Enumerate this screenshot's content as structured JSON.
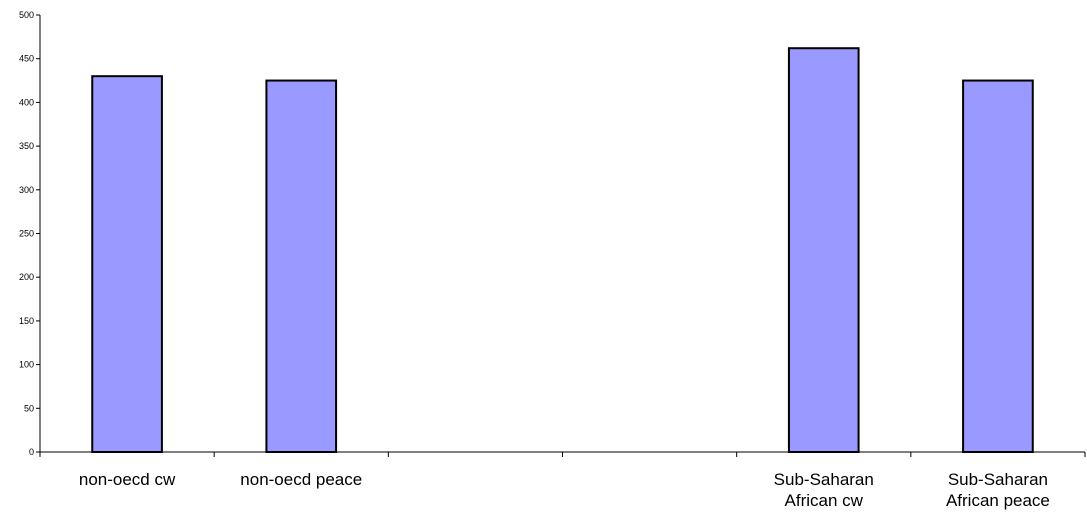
{
  "chart_data": {
    "type": "bar",
    "title": "",
    "xlabel": "",
    "ylabel": "",
    "categories": [
      [
        "non-oecd cw"
      ],
      [
        "non-oecd peace"
      ],
      [],
      [],
      [
        "Sub-Saharan",
        "African cw"
      ],
      [
        "Sub-Saharan",
        "African peace"
      ]
    ],
    "values": [
      430,
      425,
      null,
      null,
      462,
      425
    ],
    "ylim": [
      0,
      500
    ],
    "yticks": [
      "0",
      "50",
      "100",
      "150",
      "200",
      "250",
      "300",
      "350",
      "400",
      "450",
      "500"
    ],
    "grid": false,
    "legend": "none",
    "bar_color": "#9999FF",
    "bar_edge_color": "#000000"
  }
}
